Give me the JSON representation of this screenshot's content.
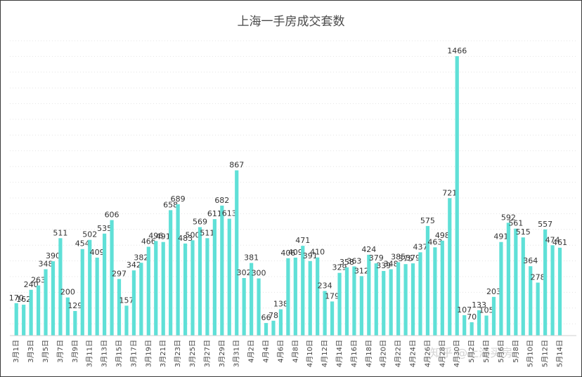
{
  "chart_data": {
    "type": "bar",
    "title": "上海一手房成交套数",
    "xlabel": "",
    "ylabel": "",
    "ylim": [
      0,
      1466
    ],
    "grid": true,
    "legend": "none",
    "bar_color": "#5fe0d7",
    "categories": [
      "3月1日",
      "3月2日",
      "3月3日",
      "3月4日",
      "3月5日",
      "3月6日",
      "3月7日",
      "3月8日",
      "3月9日",
      "3月10日",
      "3月11日",
      "3月12日",
      "3月13日",
      "3月14日",
      "3月15日",
      "3月16日",
      "3月17日",
      "3月18日",
      "3月19日",
      "3月20日",
      "3月21日",
      "3月22日",
      "3月23日",
      "3月24日",
      "3月25日",
      "3月26日",
      "3月27日",
      "3月28日",
      "3月29日",
      "3月30日",
      "3月31日",
      "4月1日",
      "4月2日",
      "4月3日",
      "4月4日",
      "4月5日",
      "4月6日",
      "4月7日",
      "4月8日",
      "4月9日",
      "4月10日",
      "4月11日",
      "4月12日",
      "4月13日",
      "4月14日",
      "4月15日",
      "4月16日",
      "4月17日",
      "4月18日",
      "4月19日",
      "4月20日",
      "4月21日",
      "4月22日",
      "4月23日",
      "4月24日",
      "4月25日",
      "4月26日",
      "4月27日",
      "4月28日",
      "4月29日",
      "4月30日",
      "5月1日",
      "5月2日",
      "5月3日",
      "5月4日",
      "5月5日",
      "5月6日",
      "5月7日",
      "5月8日",
      "5月9日",
      "5月10日",
      "5月11日",
      "5月12日",
      "5月13日",
      "5月14日"
    ],
    "values": [
      170,
      162,
      240,
      263,
      348,
      390,
      511,
      200,
      129,
      454,
      502,
      409,
      535,
      606,
      297,
      157,
      342,
      382,
      466,
      496,
      491,
      658,
      689,
      483,
      500,
      569,
      511,
      611,
      682,
      613,
      867,
      302,
      381,
      300,
      66,
      78,
      138,
      406,
      409,
      471,
      391,
      410,
      234,
      179,
      329,
      358,
      363,
      312,
      424,
      379,
      339,
      348,
      385,
      375,
      379,
      437,
      575,
      463,
      498,
      721,
      1466,
      107,
      70,
      133,
      105,
      203,
      491,
      592,
      561,
      515,
      364,
      278,
      557,
      474,
      461
    ]
  },
  "watermark": "知乎 @上海买房"
}
